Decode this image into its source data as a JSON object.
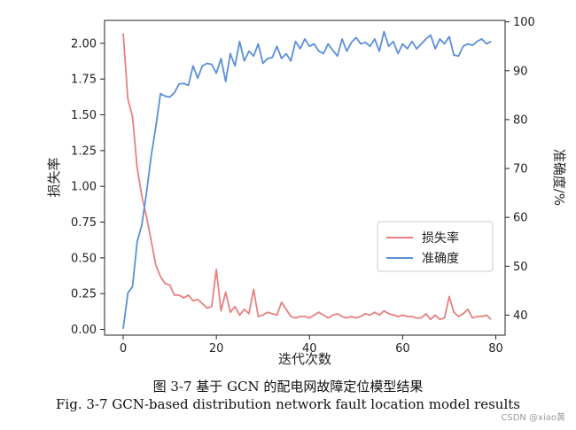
{
  "chart_data": {
    "type": "line",
    "xlabel": "迭代次数",
    "ylabel_left": "损失率",
    "ylabel_right": "准确度/%",
    "xlim": [
      -4,
      82
    ],
    "ylim_left": [
      -0.04,
      2.16
    ],
    "ylim_right": [
      35.9,
      100.3
    ],
    "x_ticks": [
      0,
      20,
      40,
      60,
      80
    ],
    "y_left_ticks": [
      "0.00",
      "0.25",
      "0.50",
      "0.75",
      "1.00",
      "1.25",
      "1.50",
      "1.75",
      "2.00"
    ],
    "y_right_ticks": [
      40,
      50,
      60,
      70,
      80,
      90,
      100
    ],
    "legend_position": "center-right",
    "grid": false,
    "series": [
      {
        "name": "损失率",
        "axis": "left",
        "color": "#e88080",
        "values": [
          2.07,
          1.61,
          1.49,
          1.13,
          0.93,
          0.79,
          0.62,
          0.45,
          0.37,
          0.32,
          0.31,
          0.24,
          0.24,
          0.22,
          0.24,
          0.2,
          0.21,
          0.18,
          0.15,
          0.16,
          0.42,
          0.13,
          0.26,
          0.12,
          0.16,
          0.1,
          0.14,
          0.11,
          0.28,
          0.09,
          0.1,
          0.12,
          0.11,
          0.1,
          0.19,
          0.14,
          0.09,
          0.08,
          0.09,
          0.09,
          0.08,
          0.1,
          0.12,
          0.1,
          0.08,
          0.1,
          0.11,
          0.09,
          0.08,
          0.09,
          0.08,
          0.09,
          0.11,
          0.1,
          0.12,
          0.1,
          0.13,
          0.11,
          0.1,
          0.09,
          0.1,
          0.09,
          0.09,
          0.08,
          0.08,
          0.11,
          0.07,
          0.1,
          0.07,
          0.08,
          0.23,
          0.12,
          0.09,
          0.11,
          0.14,
          0.08,
          0.09,
          0.09,
          0.1,
          0.07
        ]
      },
      {
        "name": "准确度",
        "axis": "right",
        "color": "#5b8fd9",
        "values": [
          37.2,
          44.5,
          45.8,
          55.0,
          58.5,
          65.0,
          72.5,
          78.5,
          85.3,
          84.8,
          84.6,
          85.5,
          87.3,
          87.4,
          87.0,
          91.0,
          88.5,
          91.0,
          91.5,
          91.3,
          89.5,
          92.5,
          87.8,
          93.5,
          91.0,
          96.0,
          92.0,
          94.0,
          93.0,
          95.5,
          91.5,
          92.5,
          92.7,
          95.0,
          92.5,
          93.5,
          92.0,
          96.0,
          94.5,
          96.5,
          95.0,
          95.5,
          94.0,
          93.5,
          95.5,
          94.2,
          93.0,
          96.5,
          94.0,
          95.8,
          96.8,
          95.5,
          95.8,
          95.0,
          96.5,
          94.0,
          98.0,
          95.0,
          96.0,
          93.5,
          95.5,
          94.5,
          96.0,
          94.5,
          95.5,
          96.5,
          97.3,
          94.5,
          96.5,
          95.5,
          97.0,
          93.2,
          93.0,
          95.0,
          95.5,
          95.2,
          96.0,
          96.5,
          95.5,
          96.0
        ]
      }
    ]
  },
  "caption_cn": "图 3-7  基于 GCN 的配电网故障定位模型结果",
  "caption_en": "Fig. 3-7 GCN-based distribution network fault location model results",
  "watermark": "CSDN @xiao黄"
}
